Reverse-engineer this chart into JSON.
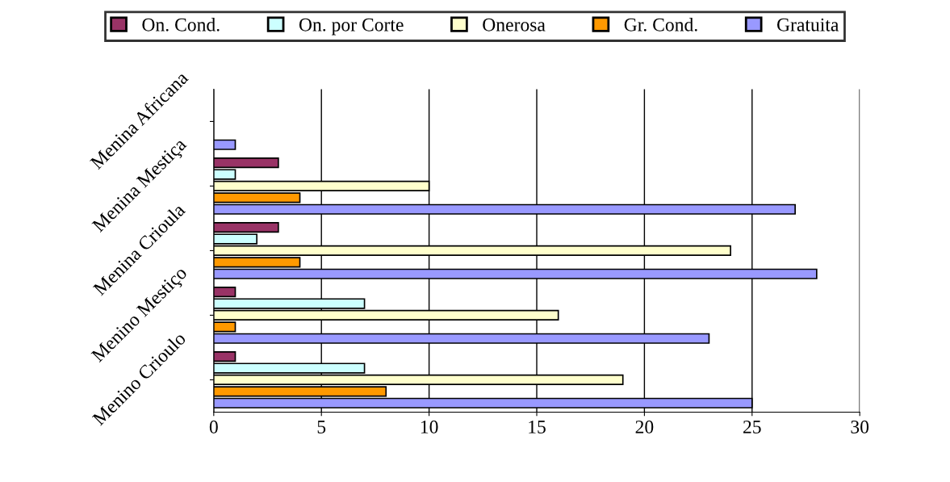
{
  "chart_data": {
    "type": "bar",
    "orientation": "horizontal",
    "categories": [
      "Menina Africana",
      "Menina Mestiça",
      "Menina Crioula",
      "Menino Mestiço",
      "Menino Crioulo"
    ],
    "series": [
      {
        "name": "On. Cond.",
        "color": "#993366",
        "values": [
          null,
          3,
          3,
          1,
          1
        ]
      },
      {
        "name": "On. por Corte",
        "color": "#ccffff",
        "values": [
          null,
          1,
          2,
          7,
          7
        ]
      },
      {
        "name": "Onerosa",
        "color": "#ffffcc",
        "values": [
          null,
          10,
          24,
          16,
          19
        ]
      },
      {
        "name": "Gr. Cond.",
        "color": "#ff9900",
        "values": [
          null,
          4,
          4,
          1,
          8
        ]
      },
      {
        "name": "Gratuita",
        "color": "#9999ff",
        "values": [
          1,
          27,
          28,
          23,
          25
        ]
      }
    ],
    "xlim": [
      0,
      30
    ],
    "xticks": [
      0,
      5,
      10,
      15,
      20,
      25,
      30
    ],
    "grid": "x",
    "legend": "top"
  }
}
